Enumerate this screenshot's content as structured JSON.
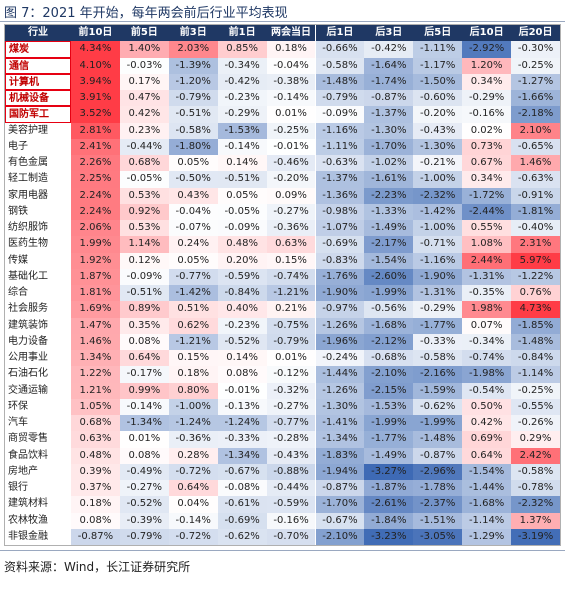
{
  "title": "图 7：2021 年开始，每年两会前后行业平均表现",
  "source": "资料来源：Wind，长江证券研究所",
  "colors": {
    "header_bg": "#1f3864",
    "header_text": "#ffffff",
    "positive": "#e8323c",
    "negative": "#3c64b4",
    "highlight_border": "#e60012"
  },
  "chart_data": {
    "type": "table",
    "columns": [
      "行业",
      "前10日",
      "前5日",
      "前3日",
      "前1日",
      "两会当日",
      "后1日",
      "后3日",
      "后5日",
      "后10日",
      "后20日"
    ],
    "highlighted_rows": [
      "煤炭",
      "通信",
      "计算机",
      "机械设备",
      "国防军工"
    ],
    "rows": [
      {
        "name": "煤炭",
        "values": [
          4.34,
          1.4,
          2.03,
          0.85,
          0.18,
          -0.66,
          -0.42,
          -1.11,
          -2.92,
          -0.3
        ]
      },
      {
        "name": "通信",
        "values": [
          4.1,
          -0.03,
          -1.39,
          -0.34,
          -0.04,
          -0.58,
          -1.64,
          -1.17,
          1.2,
          -0.25
        ]
      },
      {
        "name": "计算机",
        "values": [
          3.94,
          0.17,
          -1.2,
          -0.42,
          -0.38,
          -1.48,
          -1.74,
          -1.5,
          0.34,
          -1.27
        ]
      },
      {
        "name": "机械设备",
        "values": [
          3.91,
          0.47,
          -0.79,
          -0.23,
          -0.14,
          -0.79,
          -0.87,
          -0.6,
          -0.29,
          -1.66
        ]
      },
      {
        "name": "国防军工",
        "values": [
          3.52,
          0.42,
          -0.51,
          -0.29,
          0.01,
          -0.09,
          -1.37,
          -0.2,
          -0.16,
          -2.18
        ]
      },
      {
        "name": "美容护理",
        "values": [
          2.81,
          0.23,
          -0.58,
          -1.53,
          -0.25,
          -1.16,
          -1.3,
          -0.43,
          0.02,
          2.1
        ]
      },
      {
        "name": "电子",
        "values": [
          2.41,
          -0.44,
          -1.8,
          -0.14,
          -0.01,
          -1.11,
          -1.7,
          -1.3,
          0.73,
          -0.65
        ]
      },
      {
        "name": "有色金属",
        "values": [
          2.26,
          0.68,
          0.05,
          0.14,
          -0.46,
          -0.63,
          -1.02,
          -0.21,
          0.67,
          1.46
        ]
      },
      {
        "name": "轻工制造",
        "values": [
          2.25,
          -0.05,
          -0.5,
          -0.51,
          -0.2,
          -1.37,
          -1.61,
          -1.0,
          0.34,
          -0.63
        ]
      },
      {
        "name": "家用电器",
        "values": [
          2.24,
          0.53,
          0.43,
          0.05,
          0.09,
          -1.36,
          -2.23,
          -2.32,
          -1.72,
          -0.91
        ]
      },
      {
        "name": "钢铁",
        "values": [
          2.24,
          0.92,
          -0.04,
          -0.05,
          -0.27,
          -0.98,
          -1.33,
          -1.42,
          -2.44,
          -1.81
        ]
      },
      {
        "name": "纺织服饰",
        "values": [
          2.06,
          0.53,
          -0.07,
          -0.09,
          -0.36,
          -1.07,
          -1.49,
          -1.0,
          0.55,
          -0.4
        ]
      },
      {
        "name": "医药生物",
        "values": [
          1.99,
          1.14,
          0.24,
          0.48,
          0.63,
          -0.69,
          -2.17,
          -0.71,
          1.08,
          2.31
        ]
      },
      {
        "name": "传媒",
        "values": [
          1.92,
          0.12,
          0.05,
          0.2,
          0.15,
          -0.83,
          -1.54,
          -1.16,
          2.44,
          5.97
        ]
      },
      {
        "name": "基础化工",
        "values": [
          1.87,
          -0.09,
          -0.77,
          -0.59,
          -0.74,
          -1.76,
          -2.6,
          -1.9,
          -1.31,
          -1.22
        ]
      },
      {
        "name": "综合",
        "values": [
          1.81,
          -0.51,
          -1.42,
          -0.84,
          -1.21,
          -1.9,
          -1.99,
          -1.31,
          -0.35,
          0.76
        ]
      },
      {
        "name": "社会服务",
        "values": [
          1.69,
          0.89,
          0.51,
          0.4,
          0.21,
          -0.97,
          -0.56,
          -0.29,
          1.98,
          4.73
        ]
      },
      {
        "name": "建筑装饰",
        "values": [
          1.47,
          0.35,
          0.62,
          -0.23,
          -0.75,
          -1.26,
          -1.68,
          -1.77,
          0.07,
          -1.85
        ]
      },
      {
        "name": "电力设备",
        "values": [
          1.46,
          0.08,
          -1.21,
          -0.52,
          -0.79,
          -1.96,
          -2.12,
          -0.33,
          -0.34,
          -1.48
        ]
      },
      {
        "name": "公用事业",
        "values": [
          1.34,
          0.64,
          0.15,
          0.14,
          0.01,
          -0.24,
          -0.68,
          -0.58,
          -0.74,
          -0.84
        ]
      },
      {
        "name": "石油石化",
        "values": [
          1.22,
          -0.17,
          0.18,
          0.08,
          -0.12,
          -1.44,
          -2.1,
          -2.16,
          -1.98,
          -1.14
        ]
      },
      {
        "name": "交通运输",
        "values": [
          1.21,
          0.99,
          0.8,
          -0.01,
          -0.32,
          -1.26,
          -2.15,
          -1.59,
          -0.54,
          -0.25
        ]
      },
      {
        "name": "环保",
        "values": [
          1.05,
          -0.14,
          -1.0,
          -0.13,
          -0.27,
          -1.3,
          -1.53,
          -0.62,
          0.5,
          -0.55
        ]
      },
      {
        "name": "汽车",
        "values": [
          0.68,
          -1.34,
          -1.24,
          -1.24,
          -0.77,
          -1.41,
          -1.99,
          -1.99,
          0.42,
          -0.26
        ]
      },
      {
        "name": "商贸零售",
        "values": [
          0.63,
          0.01,
          -0.36,
          -0.33,
          -0.28,
          -1.34,
          -1.77,
          -1.48,
          0.69,
          0.29
        ]
      },
      {
        "name": "食品饮料",
        "values": [
          0.48,
          0.08,
          0.28,
          -1.34,
          -0.43,
          -1.83,
          -1.49,
          -0.87,
          0.64,
          2.42
        ]
      },
      {
        "name": "房地产",
        "values": [
          0.39,
          -0.49,
          -0.72,
          -0.67,
          -0.88,
          -1.94,
          -3.27,
          -2.96,
          -1.54,
          -0.58
        ]
      },
      {
        "name": "银行",
        "values": [
          0.37,
          -0.27,
          0.64,
          -0.08,
          -0.44,
          -0.87,
          -1.87,
          -1.78,
          -1.44,
          -0.78
        ]
      },
      {
        "name": "建筑材料",
        "values": [
          0.18,
          -0.52,
          0.04,
          -0.61,
          -0.59,
          -1.7,
          -2.61,
          -2.37,
          -1.68,
          -2.32
        ]
      },
      {
        "name": "农林牧渔",
        "values": [
          0.08,
          -0.39,
          -0.14,
          -0.69,
          -0.16,
          -0.67,
          -1.84,
          -1.51,
          -1.14,
          1.37
        ]
      },
      {
        "name": "非银金融",
        "values": [
          -0.87,
          -0.79,
          -0.72,
          -0.62,
          -0.7,
          -2.1,
          -3.23,
          -3.05,
          -1.29,
          -3.19
        ]
      }
    ]
  }
}
